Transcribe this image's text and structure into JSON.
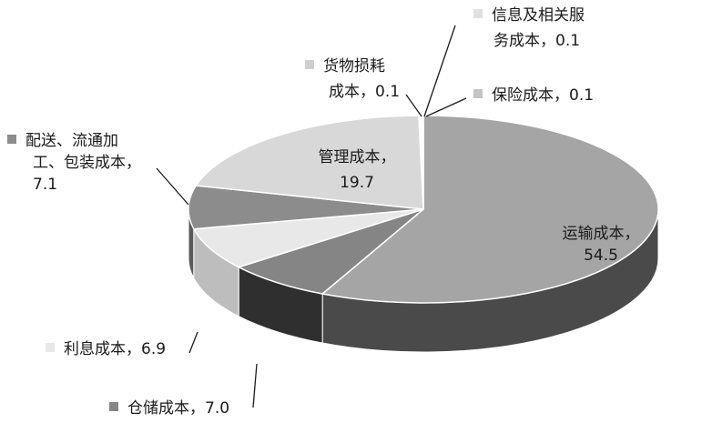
{
  "chart_data": {
    "type": "pie",
    "title": "",
    "unit": "",
    "slices": [
      {
        "label": "运输成本",
        "value": 54.5,
        "color": "#a5a5a5",
        "side": "#4a4a4a",
        "line1": "运输成本，",
        "line2": "54.5"
      },
      {
        "label": "仓储成本",
        "value": 7.0,
        "color": "#858585",
        "side": "#2f2f2f",
        "line1": "仓储成本，7.0",
        "line2": ""
      },
      {
        "label": "利息成本",
        "value": 6.9,
        "color": "#e8e8e8",
        "side": "#bdbdbd",
        "line1": "利息成本，6.9",
        "line2": ""
      },
      {
        "label": "配送、流通加工、包装成本",
        "value": 7.1,
        "color": "#8c8c8c",
        "side": "#5a5a5a",
        "line1": "配送、流通加",
        "line2": "工、包装成本，",
        "line3": "7.1"
      },
      {
        "label": "管理成本",
        "value": 19.7,
        "color": "#d8d8d8",
        "side": "#9d9d9d",
        "line1": "管理成本，",
        "line2": "19.7"
      },
      {
        "label": "货物损耗",
        "value": 0.1,
        "color": "#cfcfcf",
        "side": "#8a8a8a",
        "line1": "货物损耗",
        "line2": "成本，0.1"
      },
      {
        "label": "信息及相关服务成本",
        "value": 0.1,
        "color": "#e0e0e0",
        "side": "#9a9a9a",
        "line1": "信息及相关服",
        "line2": "务成本，0.1"
      },
      {
        "label": "保险成本",
        "value": 0.1,
        "color": "#c4c4c4",
        "side": "#8a8a8a",
        "line1": "保险成本，0.1",
        "line2": ""
      }
    ]
  }
}
